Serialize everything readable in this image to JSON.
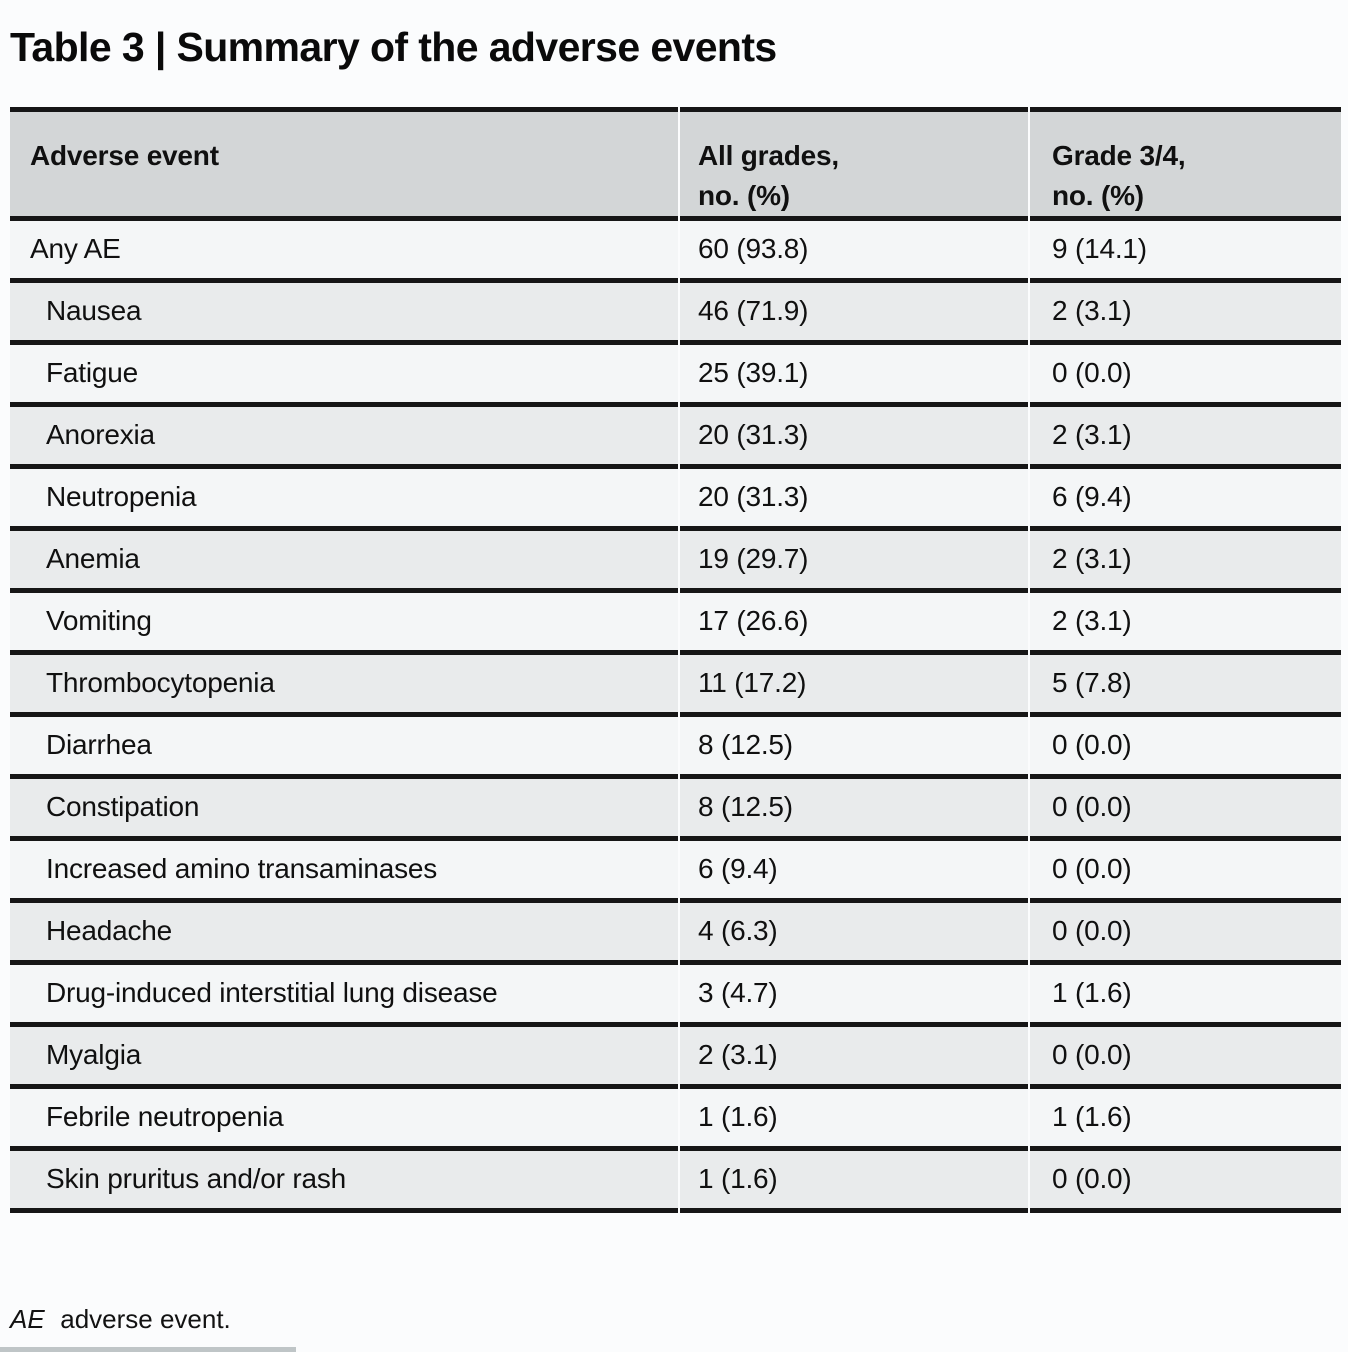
{
  "title": "Table 3 | Summary of the adverse events",
  "table": {
    "headers": {
      "event": "Adverse event",
      "all_grades_line1": "All grades,",
      "all_grades_line2": "no. (%)",
      "grade34_line1": "Grade 3/4,",
      "grade34_line2": "no. (%)"
    },
    "rows": [
      {
        "event": "Any AE",
        "all_grades": "60 (93.8)",
        "grade_3_4": "9 (14.1)",
        "indent": false
      },
      {
        "event": "Nausea",
        "all_grades": "46 (71.9)",
        "grade_3_4": "2 (3.1)",
        "indent": true
      },
      {
        "event": "Fatigue",
        "all_grades": "25 (39.1)",
        "grade_3_4": "0 (0.0)",
        "indent": true
      },
      {
        "event": "Anorexia",
        "all_grades": "20 (31.3)",
        "grade_3_4": "2 (3.1)",
        "indent": true
      },
      {
        "event": "Neutropenia",
        "all_grades": "20 (31.3)",
        "grade_3_4": "6 (9.4)",
        "indent": true
      },
      {
        "event": "Anemia",
        "all_grades": "19 (29.7)",
        "grade_3_4": "2 (3.1)",
        "indent": true
      },
      {
        "event": "Vomiting",
        "all_grades": "17 (26.6)",
        "grade_3_4": "2 (3.1)",
        "indent": true
      },
      {
        "event": "Thrombocytopenia",
        "all_grades": "11 (17.2)",
        "grade_3_4": "5 (7.8)",
        "indent": true
      },
      {
        "event": "Diarrhea",
        "all_grades": "8 (12.5)",
        "grade_3_4": "0 (0.0)",
        "indent": true
      },
      {
        "event": "Constipation",
        "all_grades": "8 (12.5)",
        "grade_3_4": "0 (0.0)",
        "indent": true
      },
      {
        "event": "Increased amino transaminases",
        "all_grades": "6 (9.4)",
        "grade_3_4": "0 (0.0)",
        "indent": true
      },
      {
        "event": "Headache",
        "all_grades": "4 (6.3)",
        "grade_3_4": "0 (0.0)",
        "indent": true
      },
      {
        "event": "Drug-induced interstitial lung disease",
        "all_grades": "3 (4.7)",
        "grade_3_4": "1 (1.6)",
        "indent": true
      },
      {
        "event": "Myalgia",
        "all_grades": "2 (3.1)",
        "grade_3_4": "0 (0.0)",
        "indent": true
      },
      {
        "event": "Febrile neutropenia",
        "all_grades": "1 (1.6)",
        "grade_3_4": "1 (1.6)",
        "indent": true
      },
      {
        "event": "Skin pruritus and/or rash",
        "all_grades": "1 (1.6)",
        "grade_3_4": "0 (0.0)",
        "indent": true
      }
    ]
  },
  "footnote": {
    "abbr": "AE",
    "definition": "adverse event."
  },
  "colors": {
    "page_background": "#fbfcfd",
    "header_background": "#d3d6d7",
    "row_background": "#f4f6f7",
    "row_alt_background": "#e9ebec",
    "rule": "#161616",
    "text": "#101010"
  }
}
